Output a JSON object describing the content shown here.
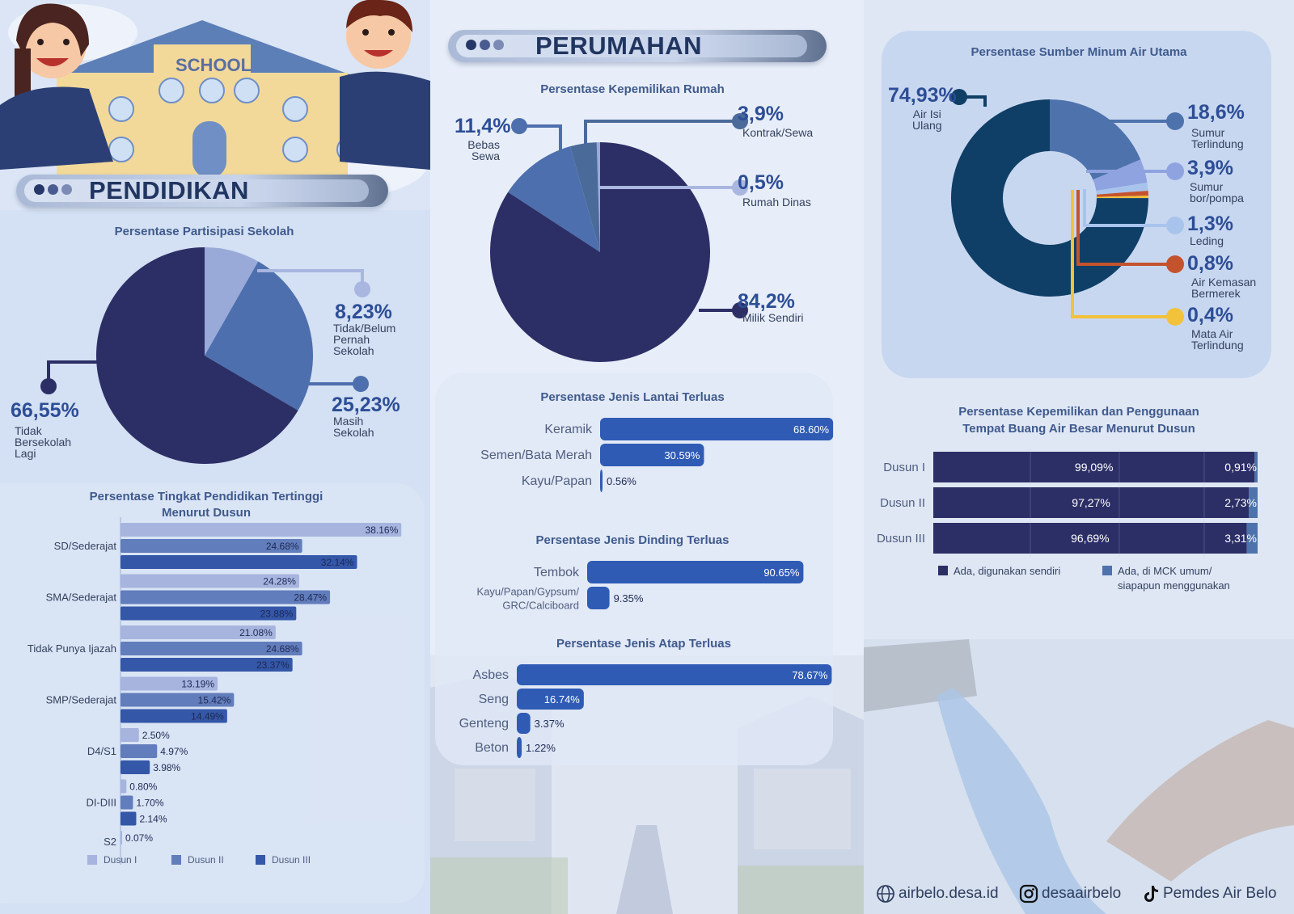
{
  "pendidikan": {
    "banner": "PENDIDIKAN",
    "school_sign": "SCHOOL",
    "partisipasi": {
      "title": "Persentase Partisipasi Sekolah",
      "slices": [
        {
          "pct": "8,23%",
          "label": "Tidak/Belum\nPernah\nSekolah"
        },
        {
          "pct": "25,23%",
          "label": "Masih\nSekolah"
        },
        {
          "pct": "66,55%",
          "label": "Tidak\nBersekolah\nLagi"
        }
      ]
    },
    "tingkat": {
      "title_line1": "Persentase Tingkat Pendidikan Tertinggi",
      "title_line2": "Menurut Dusun",
      "legend": [
        "Dusun I",
        "Dusun II",
        "Dusun III"
      ]
    }
  },
  "perumahan": {
    "banner": "PERUMAHAN",
    "kepemilikan": {
      "title": "Persentase Kepemilikan Rumah",
      "slices": [
        {
          "pct": "11,4%",
          "label": "Bebas\nSewa"
        },
        {
          "pct": "3,9%",
          "label": "Kontrak/Sewa"
        },
        {
          "pct": "0,5%",
          "label": "Rumah Dinas"
        },
        {
          "pct": "84,2%",
          "label": "Milik Sendiri"
        }
      ]
    },
    "lantai_title": "Persentase Jenis Lantai Terluas",
    "dinding_title": "Persentase Jenis Dinding Terluas",
    "atap_title": "Persentase Jenis Atap Terluas"
  },
  "air": {
    "sumber": {
      "title": "Persentase Sumber Minum Air Utama",
      "slices": [
        {
          "pct": "74,93%",
          "label": "Air Isi\nUlang"
        },
        {
          "pct": "18,6%",
          "label": "Sumur\nTerlindung"
        },
        {
          "pct": "3,9%",
          "label": "Sumur\nbor/pompa"
        },
        {
          "pct": "1,3%",
          "label": "Leding"
        },
        {
          "pct": "0,8%",
          "label": "Air Kemasan\nBermerek"
        },
        {
          "pct": "0,4%",
          "label": "Mata Air\nTerlindung"
        }
      ]
    },
    "bab": {
      "title_line1": "Persentase Kepemilikan dan Penggunaan",
      "title_line2": "Tempat Buang Air Besar Menurut Dusun",
      "legend1": "Ada, digunakan sendiri",
      "legend2": "Ada, di MCK umum/\nsiapapun menggunakan"
    }
  },
  "footer": {
    "website": "airbelo.desa.id",
    "instagram": "desaairbelo",
    "tiktok": "Pemdes Air Belo"
  },
  "chart_data": [
    {
      "id": "partisipasi",
      "type": "pie",
      "title": "Persentase Partisipasi Sekolah",
      "categories": [
        "Tidak/Belum Pernah Sekolah",
        "Masih Sekolah",
        "Tidak Bersekolah Lagi"
      ],
      "values": [
        8.23,
        25.23,
        66.55
      ],
      "colors": [
        "#9aaad8",
        "#4e6fae",
        "#2c2f66"
      ]
    },
    {
      "id": "tingkat",
      "type": "bar",
      "title": "Persentase Tingkat Pendidikan Tertinggi Menurut Dusun",
      "categories": [
        "SD/Sederajat",
        "SMA/Sederajat",
        "Tidak Punya Ijazah",
        "SMP/Sederajat",
        "D4/S1",
        "DI-DIII",
        "S2"
      ],
      "series": [
        {
          "name": "Dusun I",
          "color": "#a6b4de",
          "values": [
            38.16,
            24.28,
            21.08,
            13.19,
            2.5,
            0.8,
            0.07
          ],
          "labels": [
            "38.16%",
            "24.28%",
            "21.08%",
            "13.19%",
            "2.50%",
            "0.80%",
            "0.07%"
          ]
        },
        {
          "name": "Dusun II",
          "color": "#627dbb",
          "values": [
            24.68,
            28.47,
            24.68,
            15.42,
            4.97,
            1.7,
            null
          ],
          "labels": [
            "24.68%",
            "28.47%",
            "24.68%",
            "15.42%",
            "4.97%",
            "1.70%",
            ""
          ]
        },
        {
          "name": "Dusun III",
          "color": "#3457a8",
          "values": [
            32.14,
            23.88,
            23.37,
            14.49,
            3.98,
            2.14,
            null
          ],
          "labels": [
            "32.14%",
            "23.88%",
            "23.37%",
            "14.49%",
            "3.98%",
            "2.14%",
            ""
          ]
        }
      ]
    },
    {
      "id": "kepemilikan",
      "type": "pie",
      "title": "Persentase Kepemilikan Rumah",
      "categories": [
        "Milik Sendiri",
        "Bebas Sewa",
        "Kontrak/Sewa",
        "Rumah Dinas"
      ],
      "values": [
        84.2,
        11.4,
        3.9,
        0.5
      ],
      "colors": [
        "#2c2f66",
        "#4e6fae",
        "#4a6a9a",
        "#9aaad8"
      ]
    },
    {
      "id": "lantai",
      "type": "bar",
      "title": "Persentase Jenis Lantai Terluas",
      "categories": [
        "Keramik",
        "Semen/Bata Merah",
        "Kayu/Papan"
      ],
      "values": [
        68.6,
        30.59,
        0.56
      ],
      "labels": [
        "68.60%",
        "30.59%",
        "0.56%"
      ]
    },
    {
      "id": "dinding",
      "type": "bar",
      "title": "Persentase Jenis Dinding Terluas",
      "categories": [
        "Tembok",
        "Kayu/Papan/Gypsum/\nGRC/Calciboard"
      ],
      "values": [
        90.65,
        9.35
      ],
      "labels": [
        "90.65%",
        "9.35%"
      ]
    },
    {
      "id": "atap",
      "type": "bar",
      "title": "Persentase Jenis Atap Terluas",
      "categories": [
        "Asbes",
        "Seng",
        "Genteng",
        "Beton"
      ],
      "values": [
        78.67,
        16.74,
        3.37,
        1.22
      ],
      "labels": [
        "78.67%",
        "16.74%",
        "3.37%",
        "1.22%"
      ]
    },
    {
      "id": "sumber",
      "type": "pie",
      "title": "Persentase Sumber Minum Air Utama",
      "categories": [
        "Sumur Terlindung",
        "Sumur bor/pompa",
        "Leding",
        "Air Kemasan Bermerek",
        "Mata Air Terlindung",
        "Air Isi Ulang"
      ],
      "values": [
        18.6,
        3.9,
        1.3,
        0.8,
        0.4,
        74.93
      ],
      "colors": [
        "#4e72ac",
        "#8fa3e0",
        "#a9c4ec",
        "#c4532d",
        "#f2c23a",
        "#0f3f66"
      ]
    },
    {
      "id": "bab",
      "type": "bar",
      "title": "Persentase Kepemilikan dan Penggunaan Tempat Buang Air Besar Menurut Dusun",
      "categories": [
        "Dusun I",
        "Dusun II",
        "Dusun III"
      ],
      "series": [
        {
          "name": "Ada, digunakan sendiri",
          "color": "#2c2f66",
          "values": [
            99.09,
            97.27,
            96.69
          ],
          "labels": [
            "99,09%",
            "97,27%",
            "96,69%"
          ]
        },
        {
          "name": "Ada, di MCK umum/ siapapun menggunakan",
          "color": "#4e72ac",
          "values": [
            0.91,
            2.73,
            3.31
          ],
          "labels": [
            "0,91%",
            "2,73%",
            "3,31%"
          ]
        }
      ]
    }
  ]
}
